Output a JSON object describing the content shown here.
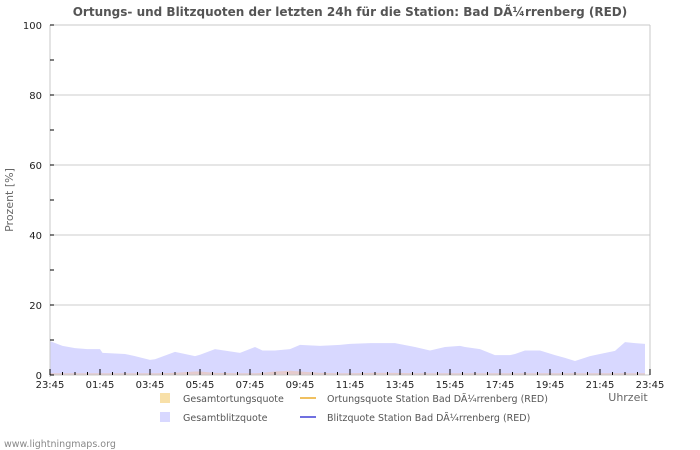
{
  "title": "Ortungs- und Blitzquoten der letzten 24h für die Station: Bad DÃ¼rrenberg (RED)",
  "footer": "www.lightningmaps.org",
  "colors": {
    "blitz_area": "#d8d8ff",
    "blitz_line": "#7070e0",
    "ortung_area": "#f8e0a8",
    "ortung_line": "#f0c060",
    "grid": "#cccccc",
    "axis": "#c8c8c8"
  },
  "chart_data": {
    "type": "area",
    "title": "Ortungs- und Blitzquoten der letzten 24h für die Station: Bad DÃ¼rrenberg (RED)",
    "xlabel": "Uhrzeit",
    "ylabel": "Prozent   [%]",
    "ylim": [
      0,
      100
    ],
    "yticks": [
      0,
      20,
      40,
      60,
      80,
      100
    ],
    "xticks": [
      "23:45",
      "01:45",
      "03:45",
      "05:45",
      "07:45",
      "09:45",
      "11:45",
      "13:45",
      "15:45",
      "17:45",
      "19:45",
      "21:45",
      "23:45"
    ],
    "x_hours": [
      0,
      0.5,
      1.0,
      1.5,
      2.0,
      2.1,
      3.0,
      3.4,
      4.0,
      4.2,
      5.0,
      5.8,
      6.0,
      6.6,
      7.6,
      8.2,
      8.5,
      9.0,
      9.6,
      10.0,
      10.8,
      11.6,
      12.0,
      12.8,
      13.8,
      14.6,
      15.2,
      15.8,
      16.4,
      16.6,
      17.2,
      17.8,
      18.4,
      18.6,
      19.0,
      19.6,
      20.2,
      20.6,
      21.0,
      21.6,
      22.0,
      22.6,
      23.0,
      23.4,
      23.8
    ],
    "series": [
      {
        "name": "Gesamtblitzquote",
        "values": [
          9.7,
          8.3,
          7.7,
          7.4,
          7.4,
          6.3,
          6.0,
          5.4,
          4.3,
          4.5,
          6.6,
          5.4,
          5.8,
          7.4,
          6.3,
          8.0,
          7.0,
          7.0,
          7.4,
          8.6,
          8.3,
          8.6,
          8.9,
          9.1,
          9.1,
          8.0,
          7.0,
          8.0,
          8.3,
          8.0,
          7.4,
          5.7,
          5.7,
          6.0,
          7.0,
          7.0,
          5.7,
          4.9,
          4.0,
          5.4,
          6.0,
          6.9,
          9.4,
          9.1,
          8.9
        ]
      },
      {
        "name": "Gesamtortungsquote",
        "values": [
          0.5,
          0.5,
          0.5,
          0.5,
          0.5,
          0.5,
          0.5,
          0.5,
          0.5,
          0.5,
          0.6,
          1.0,
          1.0,
          0.6,
          0.5,
          0.5,
          0.6,
          1.0,
          1.2,
          1.0,
          0.6,
          0.5,
          0.5,
          0.6,
          0.6,
          0.5,
          0.5,
          0.5,
          0.5,
          0.5,
          0.5,
          0.5,
          0.5,
          0.5,
          0.5,
          0.5,
          0.5,
          0.5,
          0.5,
          0.5,
          0.5,
          0.5,
          0.5,
          0.5,
          0.5
        ]
      },
      {
        "name": "Ortungsquote Station Bad DÃ¼rrenberg (RED)",
        "values": []
      },
      {
        "name": "Blitzquote Station Bad DÃ¼rrenberg (RED)",
        "values": []
      }
    ],
    "grid": true,
    "legend_position": "bottom"
  },
  "legend": [
    {
      "label": "Gesamtortungsquote",
      "kind": "box",
      "color": "#f8e0a8"
    },
    {
      "label": "Ortungsquote Station Bad DÃ¼rrenberg (RED)",
      "kind": "line",
      "color": "#f0c060"
    },
    {
      "label": "Gesamtblitzquote",
      "kind": "box",
      "color": "#d8d8ff"
    },
    {
      "label": "Blitzquote Station Bad DÃ¼rrenberg (RED)",
      "kind": "line",
      "color": "#7070e0"
    }
  ]
}
